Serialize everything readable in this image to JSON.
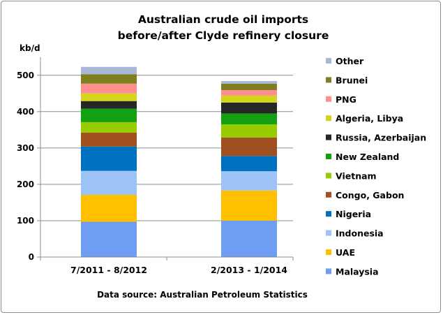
{
  "chart_data": {
    "type": "bar",
    "stacked": true,
    "title_line1": "Australian crude oil imports",
    "title_line2": "before/after Clyde refinery closure",
    "ylabel": "kb/d",
    "source": "Data source: Australian Petroleum Statistics",
    "ylim": [
      0,
      550
    ],
    "yticks": [
      0,
      100,
      200,
      300,
      400,
      500
    ],
    "grid": true,
    "legend_position": "right",
    "categories": [
      "7/2011 - 8/2012",
      "2/2013 - 1/2014"
    ],
    "series": [
      {
        "name": "Malaysia",
        "color": "#6d9ef2",
        "values": [
          97,
          100
        ]
      },
      {
        "name": "UAE",
        "color": "#ffc000",
        "values": [
          74,
          83
        ]
      },
      {
        "name": "Indonesia",
        "color": "#9dc3f7",
        "values": [
          66,
          53
        ]
      },
      {
        "name": "Nigeria",
        "color": "#0070c0",
        "values": [
          67,
          42
        ]
      },
      {
        "name": "Congo, Gabon",
        "color": "#a0501e",
        "values": [
          38,
          51
        ]
      },
      {
        "name": "Vietnam",
        "color": "#99cc00",
        "values": [
          29,
          36
        ]
      },
      {
        "name": "New Zealand",
        "color": "#13a013",
        "values": [
          37,
          30
        ]
      },
      {
        "name": "Russia, Azerbaijan",
        "color": "#262626",
        "values": [
          21,
          30
        ]
      },
      {
        "name": "Algeria, Libya",
        "color": "#d4d41a",
        "values": [
          21,
          19
        ]
      },
      {
        "name": "PNG",
        "color": "#ff8e8e",
        "values": [
          27,
          15
        ]
      },
      {
        "name": "Brunei",
        "color": "#7f7f1f",
        "values": [
          26,
          18
        ]
      },
      {
        "name": "Other",
        "color": "#a9b8d8",
        "values": [
          20,
          7
        ]
      }
    ]
  }
}
